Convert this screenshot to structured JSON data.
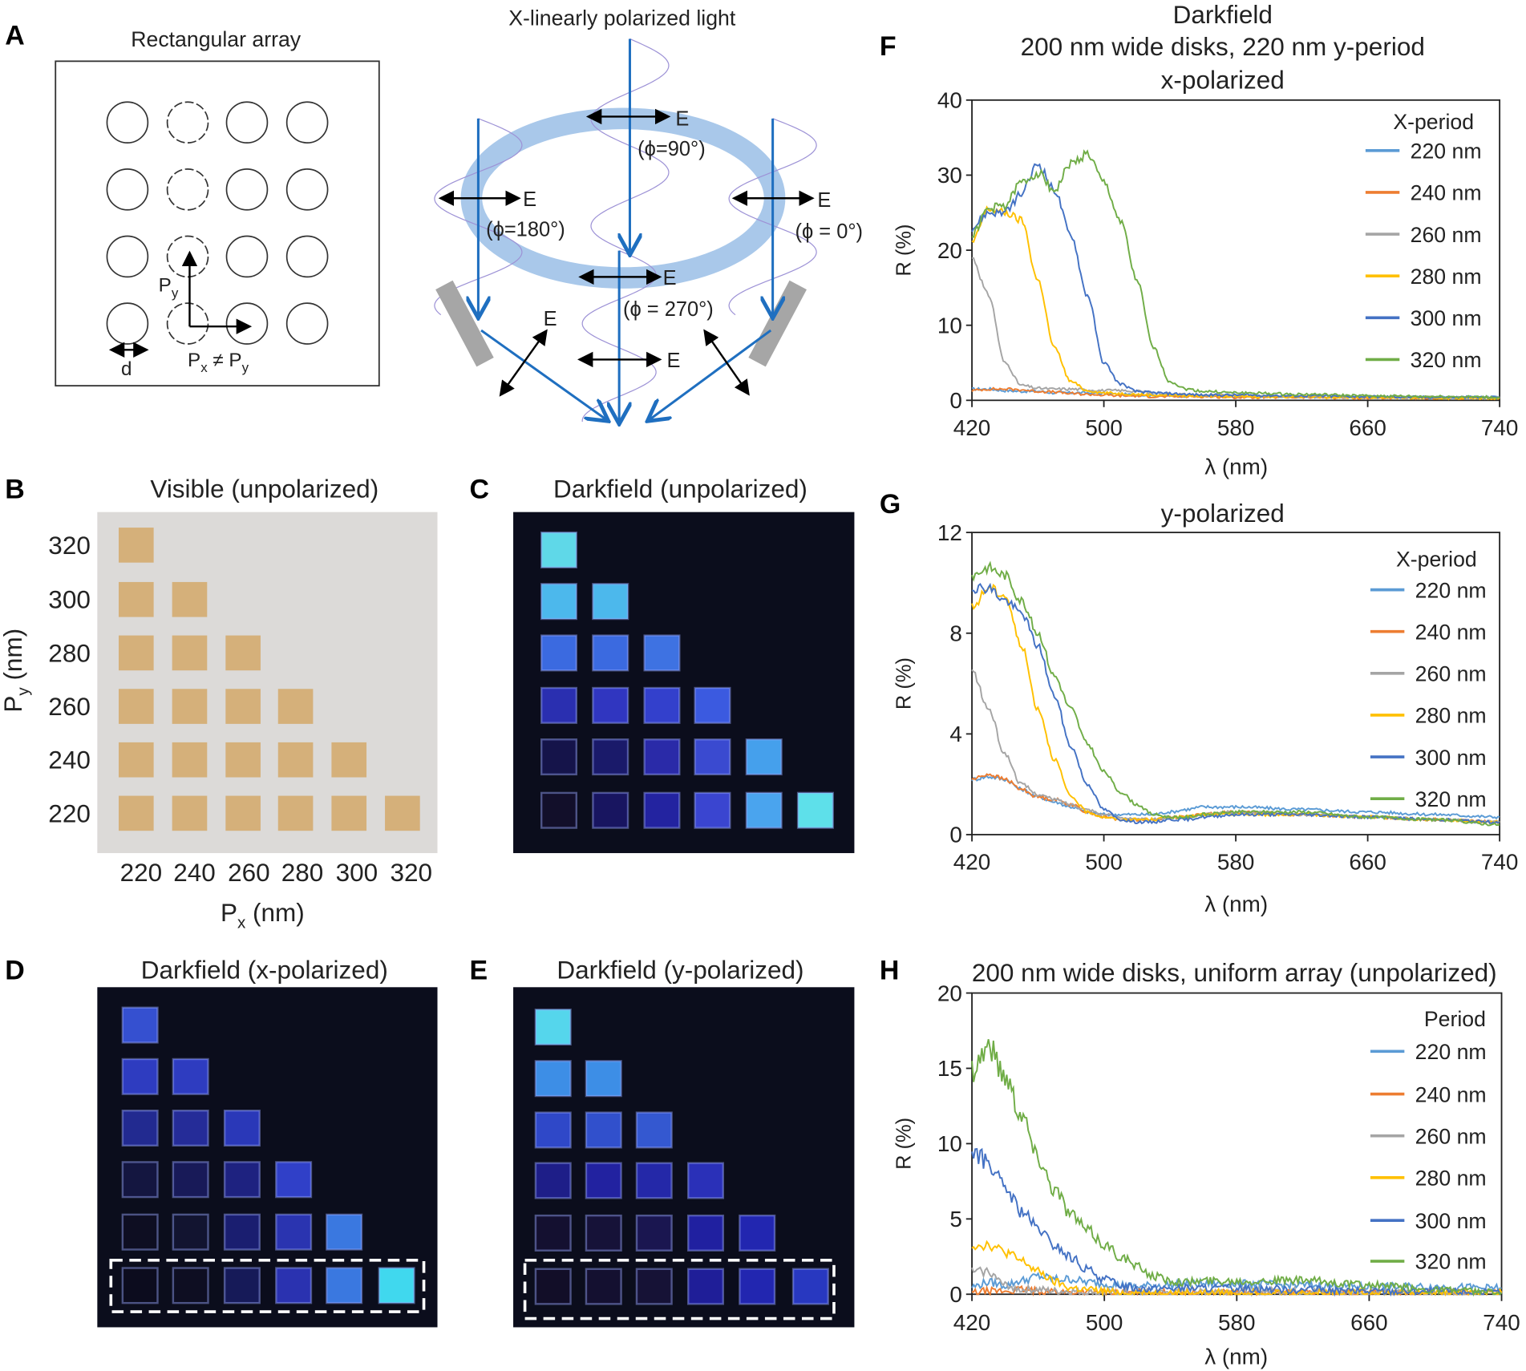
{
  "panel_labels": {
    "a": "A",
    "b": "B",
    "c": "C",
    "d": "D",
    "e": "E",
    "f": "F",
    "g": "G",
    "h": "H"
  },
  "panel_a": {
    "title": "Rectangular array",
    "py_label": "P",
    "py_sub": "y",
    "px_label": "P",
    "px_sub": "x",
    "neq": " ≠ P",
    "neq_sub": "y",
    "d_label": "d",
    "diagram_title": "X-linearly polarized light",
    "e_label": "E",
    "phi_90": "(ϕ=90°)",
    "phi_180": "(ϕ=180°)",
    "phi_0": "(ϕ = 0°)",
    "phi_270": "(ϕ = 270°)"
  },
  "panel_b": {
    "title": "Visible (unpolarized)",
    "y_ticks": [
      "320",
      "300",
      "280",
      "260",
      "240",
      "220"
    ],
    "x_ticks": [
      "220",
      "240",
      "260",
      "280",
      "300",
      "320"
    ],
    "ylabel": "P",
    "ylabel_sub": "y",
    "ylabel_unit": " (nm)",
    "xlabel": "P",
    "xlabel_sub": "x",
    "xlabel_unit": "  (nm)",
    "background": "#dcdad8",
    "square_color": "#d5b07a"
  },
  "panel_c": {
    "title": "Darkfield (unpolarized)",
    "colors": [
      [
        "#5fd8e8"
      ],
      [
        "#4cb8ec",
        "#4cb8ec"
      ],
      [
        "#3b6ae0",
        "#3b6ae0",
        "#3e72e2"
      ],
      [
        "#2a2fb0",
        "#3036c0",
        "#3340cc",
        "#3b5ae0"
      ],
      [
        "#15144a",
        "#1a1a6a",
        "#2a2aa8",
        "#3a4ad0",
        "#45a0ec"
      ],
      [
        "#120f2a",
        "#181560",
        "#2323a0",
        "#3a45d0",
        "#4aa4ee",
        "#5ee0ea"
      ]
    ]
  },
  "panel_d": {
    "title": "Darkfield (x-polarized)",
    "colors": [
      [
        "#3550d0"
      ],
      [
        "#2e3cc0",
        "#2e3cc0"
      ],
      [
        "#222a90",
        "#252c98",
        "#2a38b8"
      ],
      [
        "#141640",
        "#181a58",
        "#1e2280",
        "#3040c8"
      ],
      [
        "#0e0e22",
        "#121430",
        "#1a1e70",
        "#2a34b0",
        "#3a78e0"
      ],
      [
        "#0c0c1e",
        "#0e0e22",
        "#161a58",
        "#2a32b0",
        "#3a78e0",
        "#40d8ee"
      ]
    ]
  },
  "panel_e": {
    "title": "Darkfield (y-polarized)",
    "colors": [
      [
        "#55d6ec"
      ],
      [
        "#3d8ee6",
        "#3d8ee6"
      ],
      [
        "#2f48c8",
        "#3150cc",
        "#3458d0"
      ],
      [
        "#1e1e88",
        "#2222a0",
        "#2428a8",
        "#2a30b8"
      ],
      [
        "#141030",
        "#161238",
        "#1a1650",
        "#2020a0",
        "#2226b0"
      ],
      [
        "#120e28",
        "#141030",
        "#161236",
        "#1f1e98",
        "#2226b0",
        "#2838c0"
      ]
    ]
  },
  "chart_data": [
    {
      "id": "F",
      "type": "line",
      "title_lines": [
        "Darkfield",
        "200 nm wide disks, 220 nm y-period",
        "x-polarized"
      ],
      "xlabel": "λ (nm)",
      "ylabel": "R (%)",
      "xlim": [
        420,
        740
      ],
      "ylim": [
        0,
        40
      ],
      "x_ticks": [
        420,
        500,
        580,
        660,
        740
      ],
      "y_ticks": [
        0,
        10,
        20,
        30,
        40
      ],
      "legend_title": "X-period",
      "legend_position": "top-right",
      "x": [
        420,
        430,
        440,
        450,
        460,
        470,
        480,
        490,
        500,
        510,
        520,
        530,
        540,
        550,
        560,
        580,
        620,
        660,
        700,
        740
      ],
      "series": [
        {
          "name": "220 nm",
          "color": "#5b9bd5",
          "values": [
            1.5,
            1.5,
            1.3,
            1.2,
            1.2,
            1.0,
            1.0,
            1.0,
            0.9,
            0.8,
            0.7,
            0.7,
            0.6,
            0.6,
            0.6,
            0.5,
            0.5,
            0.4,
            0.4,
            0.4
          ]
        },
        {
          "name": "240 nm",
          "color": "#ed7d31",
          "values": [
            1.3,
            1.5,
            1.5,
            1.4,
            1.2,
            1.1,
            0.9,
            0.8,
            0.7,
            0.6,
            0.6,
            0.5,
            0.5,
            0.5,
            0.5,
            0.4,
            0.4,
            0.3,
            0.3,
            0.3
          ]
        },
        {
          "name": "260 nm",
          "color": "#a5a5a5",
          "values": [
            19,
            14,
            5,
            2,
            1.6,
            1.5,
            1.5,
            1.4,
            1.3,
            1.3,
            1.2,
            1.0,
            0.9,
            0.8,
            0.7,
            0.6,
            0.5,
            0.4,
            0.4,
            0.3
          ]
        },
        {
          "name": "280 nm",
          "color": "#ffc000",
          "values": [
            21,
            25.5,
            25,
            24,
            16,
            7,
            2.5,
            1.3,
            1,
            0.9,
            0.8,
            0.7,
            0.7,
            0.6,
            0.6,
            0.5,
            0.5,
            0.4,
            0.3,
            0.3
          ]
        },
        {
          "name": "300 nm",
          "color": "#4472c4",
          "values": [
            23,
            25,
            25,
            27.5,
            31.5,
            28,
            22,
            14,
            5,
            2.2,
            1.2,
            1,
            0.9,
            0.8,
            0.7,
            0.7,
            0.6,
            0.5,
            0.4,
            0.4
          ]
        },
        {
          "name": "320 nm",
          "color": "#70ad47",
          "values": [
            22,
            25.5,
            26,
            29,
            30.3,
            28,
            31.5,
            32.8,
            29,
            24,
            16,
            7,
            2.5,
            1.5,
            1.2,
            1,
            0.8,
            0.6,
            0.5,
            0.4
          ]
        }
      ]
    },
    {
      "id": "G",
      "type": "line",
      "title_lines": [
        "y-polarized"
      ],
      "xlabel": "λ (nm)",
      "ylabel": "R (%)",
      "xlim": [
        420,
        740
      ],
      "ylim": [
        0,
        12
      ],
      "x_ticks": [
        420,
        500,
        580,
        660,
        740
      ],
      "y_ticks": [
        0,
        4,
        8,
        12
      ],
      "legend_title": "X-period",
      "legend_position": "top-right",
      "x": [
        420,
        430,
        440,
        450,
        460,
        470,
        480,
        490,
        500,
        510,
        520,
        530,
        540,
        550,
        560,
        580,
        620,
        660,
        700,
        740
      ],
      "series": [
        {
          "name": "220 nm",
          "color": "#5b9bd5",
          "values": [
            2.2,
            2.3,
            2.2,
            1.8,
            1.5,
            1.3,
            1.1,
            0.9,
            0.8,
            0.8,
            0.8,
            0.8,
            0.9,
            1.0,
            1.1,
            1.1,
            1.0,
            0.9,
            0.8,
            0.7
          ]
        },
        {
          "name": "240 nm",
          "color": "#ed7d31",
          "values": [
            2.2,
            2.4,
            2.2,
            1.8,
            1.5,
            1.4,
            1.2,
            0.9,
            0.7,
            0.6,
            0.6,
            0.6,
            0.7,
            0.7,
            0.8,
            0.9,
            0.8,
            0.7,
            0.6,
            0.5
          ]
        },
        {
          "name": "260 nm",
          "color": "#a5a5a5",
          "values": [
            6.5,
            5,
            3.2,
            2,
            1.6,
            1.4,
            1.2,
            1.0,
            0.8,
            0.7,
            0.6,
            0.6,
            0.7,
            0.7,
            0.8,
            0.9,
            0.8,
            0.7,
            0.6,
            0.5
          ]
        },
        {
          "name": "280 nm",
          "color": "#ffc000",
          "values": [
            9,
            9.8,
            9.5,
            7.5,
            5,
            3,
            1.5,
            0.9,
            0.7,
            0.6,
            0.6,
            0.6,
            0.7,
            0.7,
            0.8,
            0.8,
            0.8,
            0.7,
            0.6,
            0.5
          ]
        },
        {
          "name": "300 nm",
          "color": "#4472c4",
          "values": [
            9.8,
            9.8,
            9.3,
            8.8,
            7.5,
            5.5,
            3.5,
            2,
            1,
            0.6,
            0.5,
            0.5,
            0.6,
            0.6,
            0.7,
            0.8,
            0.8,
            0.7,
            0.6,
            0.5
          ]
        },
        {
          "name": "320 nm",
          "color": "#70ad47",
          "values": [
            10.3,
            10.6,
            10.3,
            9.3,
            8,
            6.3,
            5,
            3.6,
            2.5,
            1.7,
            1.2,
            0.8,
            0.7,
            0.7,
            0.8,
            0.9,
            0.9,
            0.7,
            0.6,
            0.4
          ]
        }
      ]
    },
    {
      "id": "H",
      "type": "line",
      "title_lines": [
        "200 nm wide disks, uniform array (unpolarized)"
      ],
      "xlabel": "λ (nm)",
      "ylabel": "R (%)",
      "xlim": [
        420,
        740
      ],
      "ylim": [
        0,
        20
      ],
      "x_ticks": [
        420,
        500,
        580,
        660,
        740
      ],
      "y_ticks": [
        0,
        5,
        10,
        15,
        20
      ],
      "legend_title": "Period",
      "legend_position": "top-right",
      "x": [
        420,
        430,
        440,
        450,
        460,
        470,
        480,
        490,
        500,
        510,
        520,
        530,
        540,
        550,
        560,
        580,
        620,
        660,
        700,
        740
      ],
      "series": [
        {
          "name": "220 nm",
          "color": "#5b9bd5",
          "values": [
            0.5,
            0.8,
            0.6,
            0.9,
            1.2,
            1.0,
            1.0,
            0.8,
            0.7,
            0.6,
            0.5,
            0.6,
            0.6,
            0.7,
            0.7,
            0.7,
            0.6,
            0.5,
            0.5,
            0.4
          ]
        },
        {
          "name": "240 nm",
          "color": "#ed7d31",
          "values": [
            0.1,
            0.2,
            0.2,
            0.3,
            0.2,
            0.2,
            0.1,
            0.1,
            0.1,
            0.1,
            0.1,
            0.1,
            0.1,
            0.1,
            0.1,
            0.1,
            0.1,
            0.1,
            0.1,
            0.1
          ]
        },
        {
          "name": "260 nm",
          "color": "#a5a5a5",
          "values": [
            1.5,
            1.5,
            0.6,
            0.3,
            0.3,
            0.2,
            0.2,
            0.1,
            0.1,
            0.1,
            0.1,
            0.1,
            0.1,
            0.2,
            0.2,
            0.2,
            0.2,
            0.1,
            0.1,
            0.1
          ]
        },
        {
          "name": "280 nm",
          "color": "#ffc000",
          "values": [
            3.3,
            3.3,
            2.8,
            2.2,
            1.5,
            0.8,
            0.4,
            0.3,
            0.2,
            0.1,
            0.1,
            0.1,
            0.1,
            0.1,
            0.1,
            0.1,
            0.1,
            0.1,
            0.1,
            0.1
          ]
        },
        {
          "name": "300 nm",
          "color": "#4472c4",
          "values": [
            9.5,
            8.7,
            7,
            5.5,
            4.3,
            3.2,
            2.4,
            1.6,
            1.0,
            0.6,
            0.4,
            0.4,
            0.4,
            0.4,
            0.4,
            0.4,
            0.3,
            0.2,
            0.2,
            0.1
          ]
        },
        {
          "name": "320 nm",
          "color": "#70ad47",
          "values": [
            15,
            16.5,
            14.5,
            12,
            9,
            7,
            5.3,
            4.2,
            3.3,
            2.5,
            1.8,
            1.2,
            0.9,
            0.8,
            0.9,
            0.9,
            0.9,
            0.6,
            0.3,
            0.1
          ]
        }
      ]
    }
  ]
}
